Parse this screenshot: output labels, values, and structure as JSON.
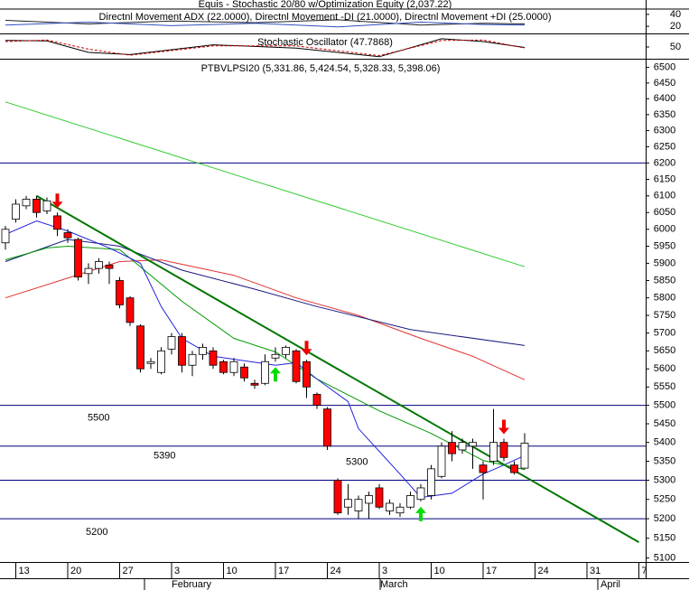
{
  "chart_data": [
    {
      "type": "line",
      "title": "Equis - Stochastic 20/80 w/Optimization Equity (2,037.22)"
    },
    {
      "type": "line",
      "title": "Directnl Movement ADX (22.0000), Directnl Movement -DI (21.0000), Directnl Movement +DI (25.0000)",
      "ylim": [
        8,
        49
      ],
      "yticks": [
        20,
        40
      ],
      "series": [
        {
          "color": "#202020",
          "x": [
            0,
            8,
            16,
            24,
            32,
            40,
            46,
            50
          ],
          "values": [
            30,
            24,
            29,
            26,
            31,
            22,
            25,
            24
          ]
        },
        {
          "color": "#3050c0",
          "x": [
            0,
            8,
            16,
            24,
            32,
            40,
            46,
            50
          ],
          "values": [
            22,
            27,
            21,
            25,
            19,
            27,
            23,
            22
          ]
        }
      ]
    },
    {
      "type": "line",
      "title": "Stochastic Oscillator (47.7868)",
      "ylim": [
        0,
        100
      ],
      "yticks": [
        50
      ],
      "series": [
        {
          "color": "#000000",
          "x": [
            0,
            4,
            8,
            12,
            20,
            28,
            36,
            42,
            46,
            50
          ],
          "values": [
            80,
            78,
            25,
            15,
            60,
            45,
            5,
            88,
            75,
            48
          ]
        },
        {
          "color": "#cc0000",
          "dashed": true,
          "x": [
            0,
            4,
            8,
            12,
            20,
            28,
            36,
            42,
            46,
            50
          ],
          "values": [
            75,
            82,
            40,
            12,
            55,
            55,
            10,
            80,
            82,
            45
          ]
        }
      ]
    },
    {
      "type": "candlestick",
      "title": "PTBVLPSI20 (5,331.86, 5,424.54, 5,328.33, 5,398.06)",
      "log_y": true,
      "ylim": [
        5090,
        6525
      ],
      "yticks": [
        5100,
        5150,
        5200,
        5250,
        5300,
        5350,
        5400,
        5450,
        5500,
        5550,
        5600,
        5650,
        5700,
        5750,
        5800,
        5850,
        5900,
        5950,
        6000,
        6050,
        6100,
        6150,
        6200,
        6250,
        6300,
        6350,
        6400,
        6450,
        6500
      ],
      "categories": [
        null,
        "13",
        null,
        null,
        null,
        null,
        "20",
        null,
        null,
        null,
        null,
        "27",
        null,
        null,
        null,
        null,
        "3",
        null,
        null,
        null,
        null,
        "10",
        null,
        null,
        null,
        null,
        "17",
        null,
        null,
        null,
        null,
        "24",
        null,
        null,
        null,
        null,
        "3",
        null,
        null,
        null,
        null,
        "10",
        null,
        null,
        null,
        null,
        "17",
        null,
        null,
        null,
        null,
        "24",
        null,
        null,
        null,
        null,
        "31",
        null,
        null,
        null,
        null,
        "7"
      ],
      "months": [
        "February",
        "March",
        "April"
      ],
      "up_color": "#ffffff",
      "down_color": "#ff0000",
      "open": [
        5960,
        6030,
        6070,
        6090,
        6055,
        6040,
        5990,
        5970,
        5870,
        5885,
        5895,
        5850,
        5800,
        5720,
        5615,
        5590,
        5655,
        5690,
        5610,
        5640,
        5650,
        5620,
        5590,
        5605,
        5560,
        5560,
        5630,
        5640,
        5650,
        5620,
        5530,
        5490,
        5300,
        5230,
        5220,
        5240,
        5280,
        5220,
        5215,
        5230,
        5250,
        5260,
        5310,
        5400,
        5380,
        5390,
        5340,
        5350,
        5400,
        5340,
        5331.86,
        null,
        null,
        null,
        null,
        null,
        null,
        null,
        null,
        null,
        null,
        null
      ],
      "high": [
        6010,
        6090,
        6100,
        6100,
        6095,
        6050,
        6000,
        5975,
        5900,
        5915,
        5905,
        5860,
        5805,
        5725,
        5630,
        5660,
        5700,
        5700,
        5650,
        5670,
        5660,
        5625,
        5630,
        5615,
        5570,
        5640,
        5660,
        5665,
        5655,
        5625,
        5535,
        5495,
        5305,
        5290,
        5260,
        5270,
        5290,
        5250,
        5240,
        5270,
        5290,
        5340,
        5400,
        5430,
        5410,
        5410,
        5350,
        5490,
        5410,
        5350,
        5424.54,
        null,
        null,
        null,
        null,
        null,
        null,
        null,
        null,
        null,
        null,
        null
      ],
      "low": [
        5940,
        6020,
        6060,
        6035,
        6045,
        5980,
        5960,
        5850,
        5840,
        5870,
        5840,
        5770,
        5720,
        5590,
        5600,
        5585,
        5640,
        5590,
        5580,
        5625,
        5600,
        5585,
        5580,
        5565,
        5545,
        5555,
        5620,
        5630,
        5560,
        5520,
        5490,
        5380,
        5210,
        5210,
        5200,
        5200,
        5225,
        5210,
        5205,
        5225,
        5245,
        5250,
        5305,
        5350,
        5370,
        5330,
        5250,
        5340,
        5350,
        5315,
        5328.33,
        null,
        null,
        null,
        null,
        null,
        null,
        null,
        null,
        null,
        null,
        null
      ],
      "close": [
        6000,
        6075,
        6090,
        6050,
        6085,
        6000,
        5975,
        5860,
        5885,
        5905,
        5885,
        5780,
        5730,
        5600,
        5620,
        5650,
        5690,
        5610,
        5640,
        5660,
        5610,
        5590,
        5620,
        5575,
        5555,
        5620,
        5640,
        5660,
        5565,
        5550,
        5500,
        5390,
        5215,
        5250,
        5250,
        5260,
        5230,
        5240,
        5230,
        5260,
        5280,
        5330,
        5390,
        5370,
        5400,
        5400,
        5320,
        5400,
        5360,
        5320,
        5398.06,
        null,
        null,
        null,
        null,
        null,
        null,
        null,
        null,
        null,
        null,
        null
      ],
      "lines": [
        {
          "color": "#33cc33",
          "x": [
            0,
            50
          ],
          "values": [
            6390,
            5890
          ]
        },
        {
          "color": "#e03030",
          "x": [
            0,
            11,
            15,
            22,
            28,
            34,
            40,
            45,
            50
          ],
          "values": [
            5800,
            5905,
            5910,
            5865,
            5800,
            5750,
            5685,
            5635,
            5570
          ]
        },
        {
          "color": "#1a1a80",
          "x": [
            0,
            6,
            11,
            17,
            24,
            30,
            39,
            50
          ],
          "values": [
            5905,
            5970,
            5950,
            5880,
            5825,
            5775,
            5710,
            5665
          ]
        },
        {
          "color": "#009900",
          "x": [
            0,
            4,
            6,
            11,
            17,
            22,
            26,
            30,
            36,
            41,
            46,
            50
          ],
          "values": [
            5910,
            5945,
            5950,
            5940,
            5790,
            5685,
            5647,
            5572,
            5485,
            5424,
            5352,
            5328
          ]
        },
        {
          "color": "#2020e0",
          "x": [
            0,
            3,
            6,
            10,
            13,
            15,
            17,
            20,
            26,
            28,
            30,
            33,
            34,
            38,
            40,
            43,
            46,
            48,
            50
          ],
          "values": [
            5985,
            6025,
            5995,
            5945,
            5900,
            5775,
            5685,
            5635,
            5610,
            5617,
            5572,
            5510,
            5437,
            5316,
            5255,
            5266,
            5316,
            5340,
            5365
          ]
        }
      ],
      "trendline": {
        "color": "#007700",
        "x": [
          3,
          61
        ],
        "values": [
          6100,
          5140
        ]
      },
      "hlines": [
        {
          "value": 6200
        },
        {
          "value": 5500,
          "label": "5500"
        },
        {
          "value": 5390,
          "label": "5390"
        },
        {
          "value": 5300,
          "label": "5300"
        },
        {
          "value": 5200,
          "label": "5200"
        }
      ],
      "hline_color": "#000080",
      "sell_signals": [
        5,
        29,
        48
      ],
      "buy_signals": [
        26,
        40
      ],
      "sell_color": "#ee0000",
      "buy_color": "#00dd00"
    }
  ]
}
